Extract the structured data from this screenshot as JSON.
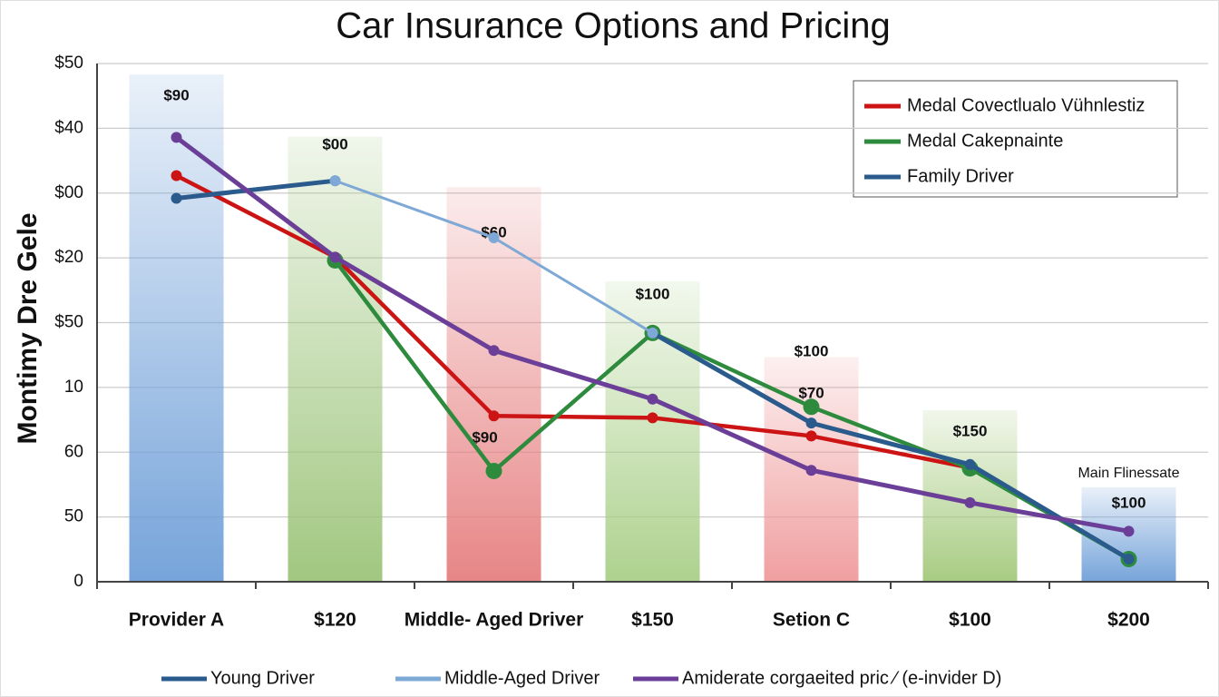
{
  "chart_data": {
    "type": "bar",
    "title": "Car Insurance Options and Pricing",
    "y_label": "Montimy Dre Gele",
    "categories": [
      "Provider A",
      "$120",
      "Middle- Aged Driver",
      "$150",
      "Setion C",
      "$100",
      "$200"
    ],
    "values": [
      78.3,
      68.7,
      60.9,
      46.4,
      34.7,
      26.5,
      14.6
    ],
    "bar_colors": [
      "#6f9fd8",
      "#9cc47a",
      "#e67f80",
      "#a9cf88",
      "#ef9a9b",
      "#a3c97c",
      "#6f9fd8"
    ],
    "annotations": [
      {
        "text": "$90",
        "category": "Provider A"
      },
      {
        "text": "$00",
        "category": "$120"
      },
      {
        "text": "$60",
        "category": "Middle- Aged Driver"
      },
      {
        "text": "$90",
        "category": "Middle- Aged Driver"
      },
      {
        "text": "$100",
        "category": "$150"
      },
      {
        "text": "$100",
        "category": "Setion C"
      },
      {
        "text": "$70",
        "category": "Setion C"
      },
      {
        "text": "$150",
        "category": "$100"
      },
      {
        "text": "Main Flinessate",
        "category": "$200"
      },
      {
        "text": "$100",
        "category": "$200"
      }
    ],
    "series": [
      {
        "name": "Medal Covectlualo Vühnlestiz",
        "color": "#cc1414",
        "legend": "top",
        "values": [
          62.7,
          50.1,
          25.6,
          25.3,
          22.5,
          17.6,
          null
        ]
      },
      {
        "name": "Medal Cakepnainte",
        "color": "#2e8b3e",
        "legend": "top",
        "values": [
          null,
          49.6,
          17.1,
          38.4,
          27.0,
          17.5,
          3.5
        ]
      },
      {
        "name": "Family Driver",
        "color": "#2a5b8c",
        "legend": "top",
        "values": [
          59.2,
          61.9,
          null,
          null,
          null,
          null,
          null
        ]
      },
      {
        "name": "Young Driver",
        "color": "#2a5b8c",
        "legend": "bottom",
        "values": [
          null,
          null,
          null,
          38.4,
          24.5,
          18.1,
          3.5
        ]
      },
      {
        "name": "Middle-Aged Driver",
        "color": "#7ea8d6",
        "legend": "bottom",
        "values": [
          null,
          61.9,
          53.1,
          38.4,
          null,
          null,
          null
        ]
      },
      {
        "name": "Amiderate corgaeited pric ⁄ (e-invider D)",
        "color": "#6b3f98",
        "legend": "bottom",
        "values": [
          68.6,
          50.1,
          35.7,
          28.2,
          17.2,
          12.2,
          7.8
        ]
      }
    ],
    "ylim": [
      0,
      80
    ],
    "yticks": [
      0,
      {
        "value": 10,
        "label": "50"
      },
      {
        "value": 20,
        "label": "60"
      },
      {
        "value": 30,
        "label": "10"
      },
      {
        "value": 40,
        "label": "$50"
      },
      {
        "value": 50,
        "label": "$20"
      },
      {
        "value": 60,
        "label": "$00"
      },
      {
        "value": 70,
        "label": "$40"
      },
      {
        "value": 80,
        "label": "$50"
      }
    ],
    "grid": true
  }
}
